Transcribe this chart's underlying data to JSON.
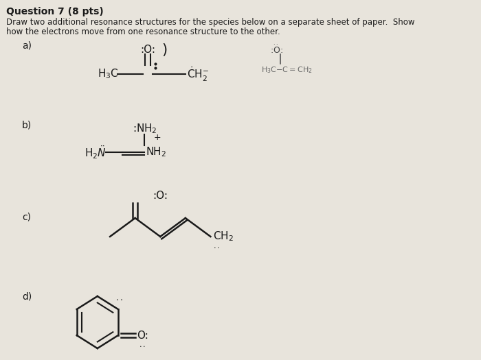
{
  "title_q": "Question 7 (8 pts)",
  "desc_line1": "Draw two additional resonance structures for the species below on a separate sheet of paper.  Show",
  "desc_line2": "how the electrons move from one resonance structure to the other.",
  "bg_color": "#e8e4dc",
  "text_color": "#1a1a1a",
  "label_a": "a)",
  "label_b": "b)",
  "label_c": "c)",
  "label_d": "d)",
  "figw": 7.0,
  "figh": 5.25,
  "dpi": 100
}
